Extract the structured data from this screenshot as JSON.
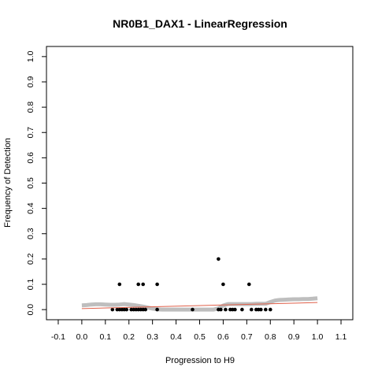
{
  "chart_data": {
    "type": "scatter",
    "title": "NR0B1_DAX1 - LinearRegression",
    "xlabel": "Progression to H9",
    "ylabel": "Frequency of Detection",
    "xlim": [
      -0.15,
      1.15
    ],
    "ylim": [
      -0.04,
      1.04
    ],
    "x_ticks": [
      -0.1,
      0.0,
      0.1,
      0.2,
      0.3,
      0.4,
      0.5,
      0.6,
      0.7,
      0.8,
      0.9,
      1.0,
      1.1
    ],
    "x_tick_labels": [
      "-0.1",
      "0.0",
      "0.1",
      "0.2",
      "0.3",
      "0.4",
      "0.5",
      "0.6",
      "0.7",
      "0.8",
      "0.9",
      "1.0",
      "1.1"
    ],
    "y_ticks": [
      0.0,
      0.1,
      0.2,
      0.3,
      0.4,
      0.5,
      0.6,
      0.7,
      0.8,
      0.9,
      1.0
    ],
    "y_tick_labels": [
      "0.0",
      "0.1",
      "0.2",
      "0.3",
      "0.4",
      "0.5",
      "0.6",
      "0.7",
      "0.8",
      "0.9",
      "1.0"
    ],
    "grid": false,
    "series": [
      {
        "kind": "points",
        "color": "#000000",
        "x": [
          0.13,
          0.15,
          0.16,
          0.17,
          0.18,
          0.19,
          0.21,
          0.22,
          0.23,
          0.24,
          0.25,
          0.26,
          0.27,
          0.32,
          0.47,
          0.58,
          0.59,
          0.61,
          0.63,
          0.64,
          0.65,
          0.68,
          0.72,
          0.74,
          0.75,
          0.76,
          0.78,
          0.8,
          0.16,
          0.24,
          0.26,
          0.32,
          0.6,
          0.71,
          0.58
        ],
        "y": [
          0,
          0,
          0,
          0,
          0,
          0,
          0,
          0,
          0,
          0,
          0,
          0,
          0,
          0,
          0,
          0,
          0,
          0,
          0,
          0,
          0,
          0,
          0,
          0,
          0,
          0,
          0,
          0,
          0.1,
          0.1,
          0.1,
          0.1,
          0.1,
          0.1,
          0.2
        ]
      },
      {
        "kind": "smoothed-line",
        "color": "#bebebe",
        "x": [
          0.0,
          0.02,
          0.04,
          0.06,
          0.08,
          0.1,
          0.12,
          0.14,
          0.16,
          0.18,
          0.2,
          0.22,
          0.24,
          0.26,
          0.28,
          0.3,
          0.32,
          0.34,
          0.36,
          0.38,
          0.4,
          0.42,
          0.44,
          0.46,
          0.48,
          0.5,
          0.52,
          0.54,
          0.56,
          0.58,
          0.6,
          0.62,
          0.64,
          0.66,
          0.68,
          0.7,
          0.72,
          0.74,
          0.76,
          0.78,
          0.8,
          0.82,
          0.84,
          0.86,
          0.88,
          0.9,
          0.92,
          0.94,
          0.96,
          0.98,
          1.0
        ],
        "y": [
          0.017,
          0.018,
          0.02,
          0.021,
          0.021,
          0.02,
          0.019,
          0.019,
          0.02,
          0.022,
          0.02,
          0.018,
          0.015,
          0.012,
          0.008,
          0.004,
          0.001,
          0.0,
          0.0,
          0.0,
          0.0,
          0.0,
          0.0,
          0.0,
          0.0,
          0.0,
          0.0,
          0.0,
          0.0,
          0.005,
          0.016,
          0.022,
          0.022,
          0.022,
          0.022,
          0.022,
          0.022,
          0.023,
          0.023,
          0.023,
          0.03,
          0.036,
          0.038,
          0.039,
          0.04,
          0.041,
          0.041,
          0.042,
          0.042,
          0.043,
          0.045
        ]
      },
      {
        "kind": "regression-line",
        "color": "#e0604a",
        "x": [
          0.0,
          1.0
        ],
        "y": [
          0.004,
          0.028
        ]
      }
    ]
  }
}
